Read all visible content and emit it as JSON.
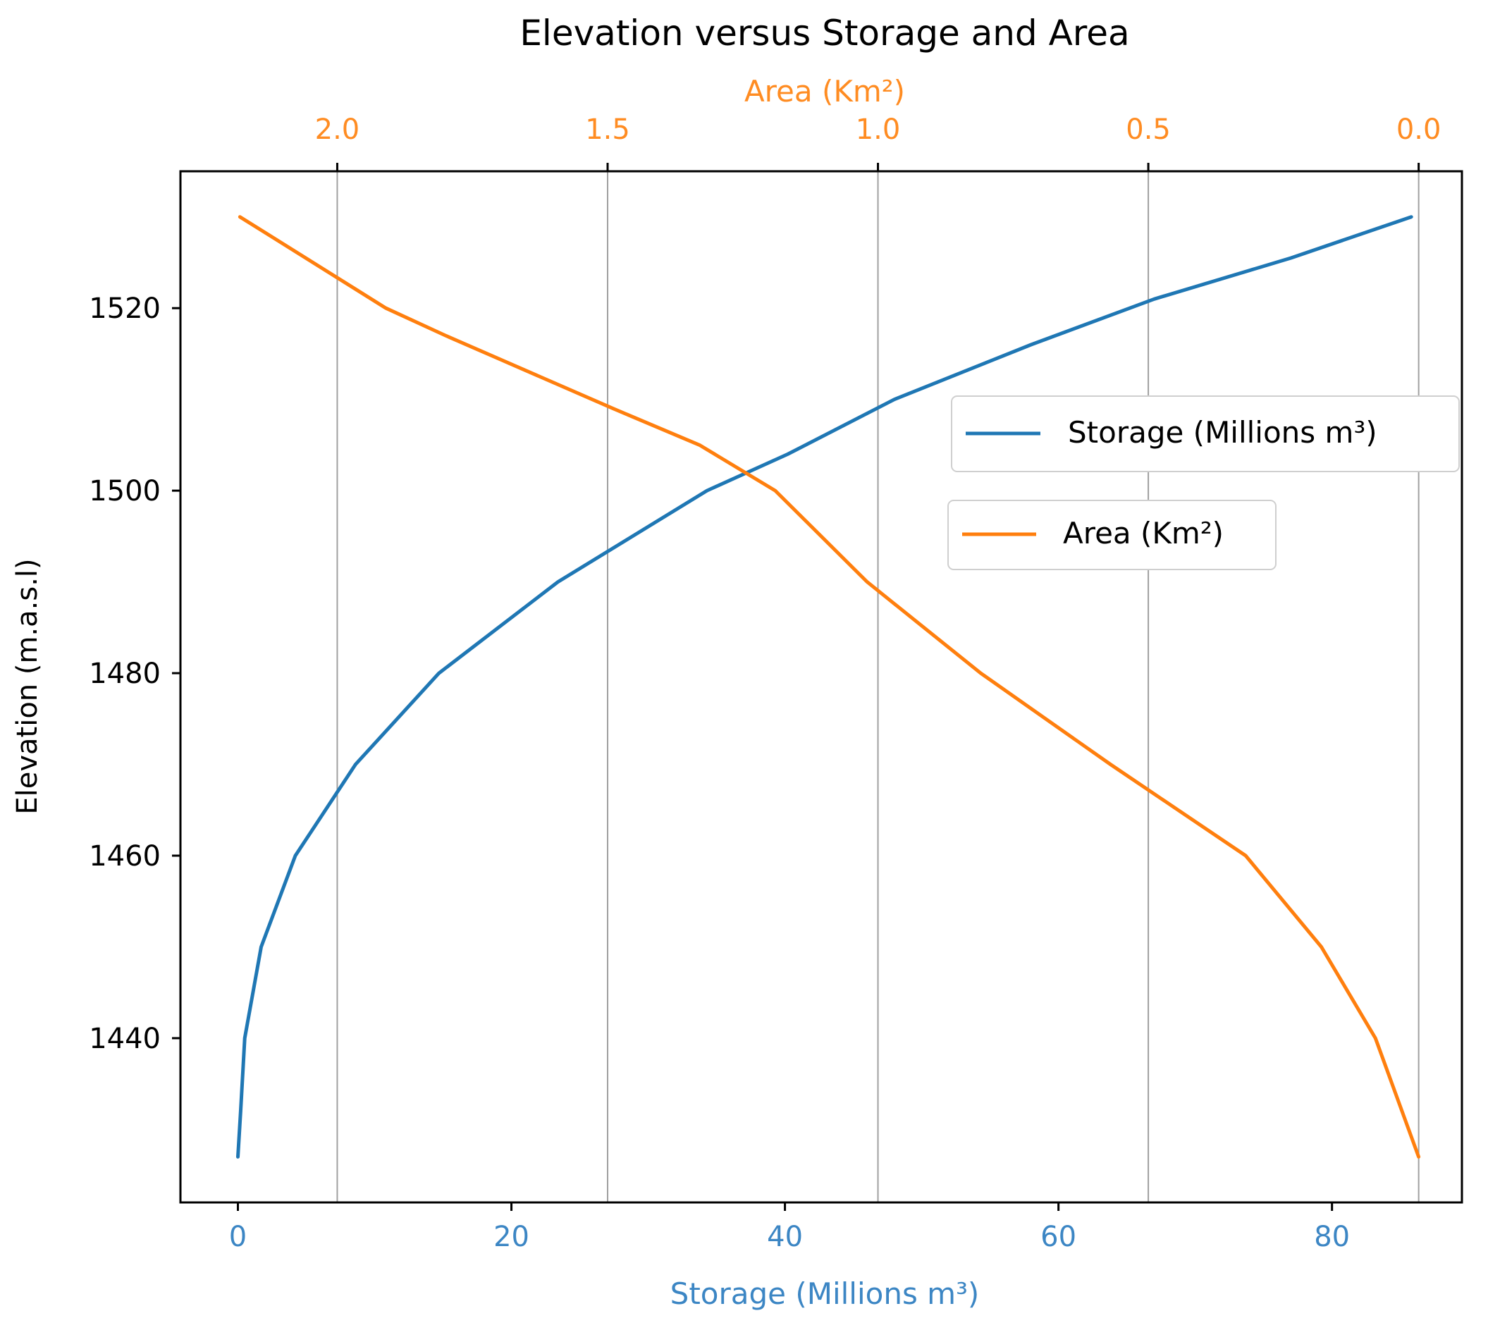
{
  "colors": {
    "storage": "#1f77b4",
    "area": "#ff7f0e",
    "text": "#000000",
    "grid": "#a0a0a0",
    "bottom_axis": "#3c86c4",
    "top_axis": "#ff8c22"
  },
  "chart_data": {
    "type": "line",
    "title": "Elevation versus Storage and Area",
    "ylabel": "Elevation (m.a.s.l)",
    "xlabel_bottom": "Storage (Millions m³)",
    "xlabel_top": "Area (Km²)",
    "ylim": [
      1422,
      1535
    ],
    "xlim_bottom": [
      -4.2,
      89.5
    ],
    "xlim_top": [
      2.29,
      -0.08
    ],
    "grid": "vertical lines at top-axis ticks",
    "legend_placement": "center-right",
    "y_ticks": [
      "1440",
      "1460",
      "1480",
      "1500",
      "1520"
    ],
    "y_tick_values": [
      1440,
      1460,
      1480,
      1500,
      1520
    ],
    "x_bottom_ticks": [
      "0",
      "20",
      "40",
      "60",
      "80"
    ],
    "x_bottom_tick_values": [
      0,
      20,
      40,
      60,
      80
    ],
    "x_top_ticks": [
      "2.0",
      "1.5",
      "1.0",
      "0.5",
      "0.0"
    ],
    "x_top_tick_values": [
      2.0,
      1.5,
      1.0,
      0.5,
      0.0
    ],
    "series": [
      {
        "name": "Storage (Millions m³)",
        "axis": "bottom",
        "points": [
          [
            0.0,
            1427
          ],
          [
            0.2,
            1432
          ],
          [
            0.5,
            1440
          ],
          [
            1.7,
            1450
          ],
          [
            4.2,
            1460
          ],
          [
            8.6,
            1470
          ],
          [
            14.7,
            1480
          ],
          [
            23.4,
            1490
          ],
          [
            34.3,
            1500
          ],
          [
            40.2,
            1504
          ],
          [
            48.0,
            1510
          ],
          [
            58.0,
            1516
          ],
          [
            67.0,
            1521
          ],
          [
            77.0,
            1525.5
          ],
          [
            85.8,
            1530
          ]
        ]
      },
      {
        "name": "Area (Km²)",
        "axis": "top",
        "points": [
          [
            0.0,
            1427
          ],
          [
            0.08,
            1440
          ],
          [
            0.18,
            1450
          ],
          [
            0.32,
            1460
          ],
          [
            0.57,
            1470
          ],
          [
            0.81,
            1480
          ],
          [
            1.02,
            1490
          ],
          [
            1.19,
            1500
          ],
          [
            1.33,
            1505
          ],
          [
            1.49,
            1509
          ],
          [
            1.8,
            1517
          ],
          [
            1.91,
            1520
          ],
          [
            2.18,
            1530
          ]
        ]
      }
    ]
  }
}
